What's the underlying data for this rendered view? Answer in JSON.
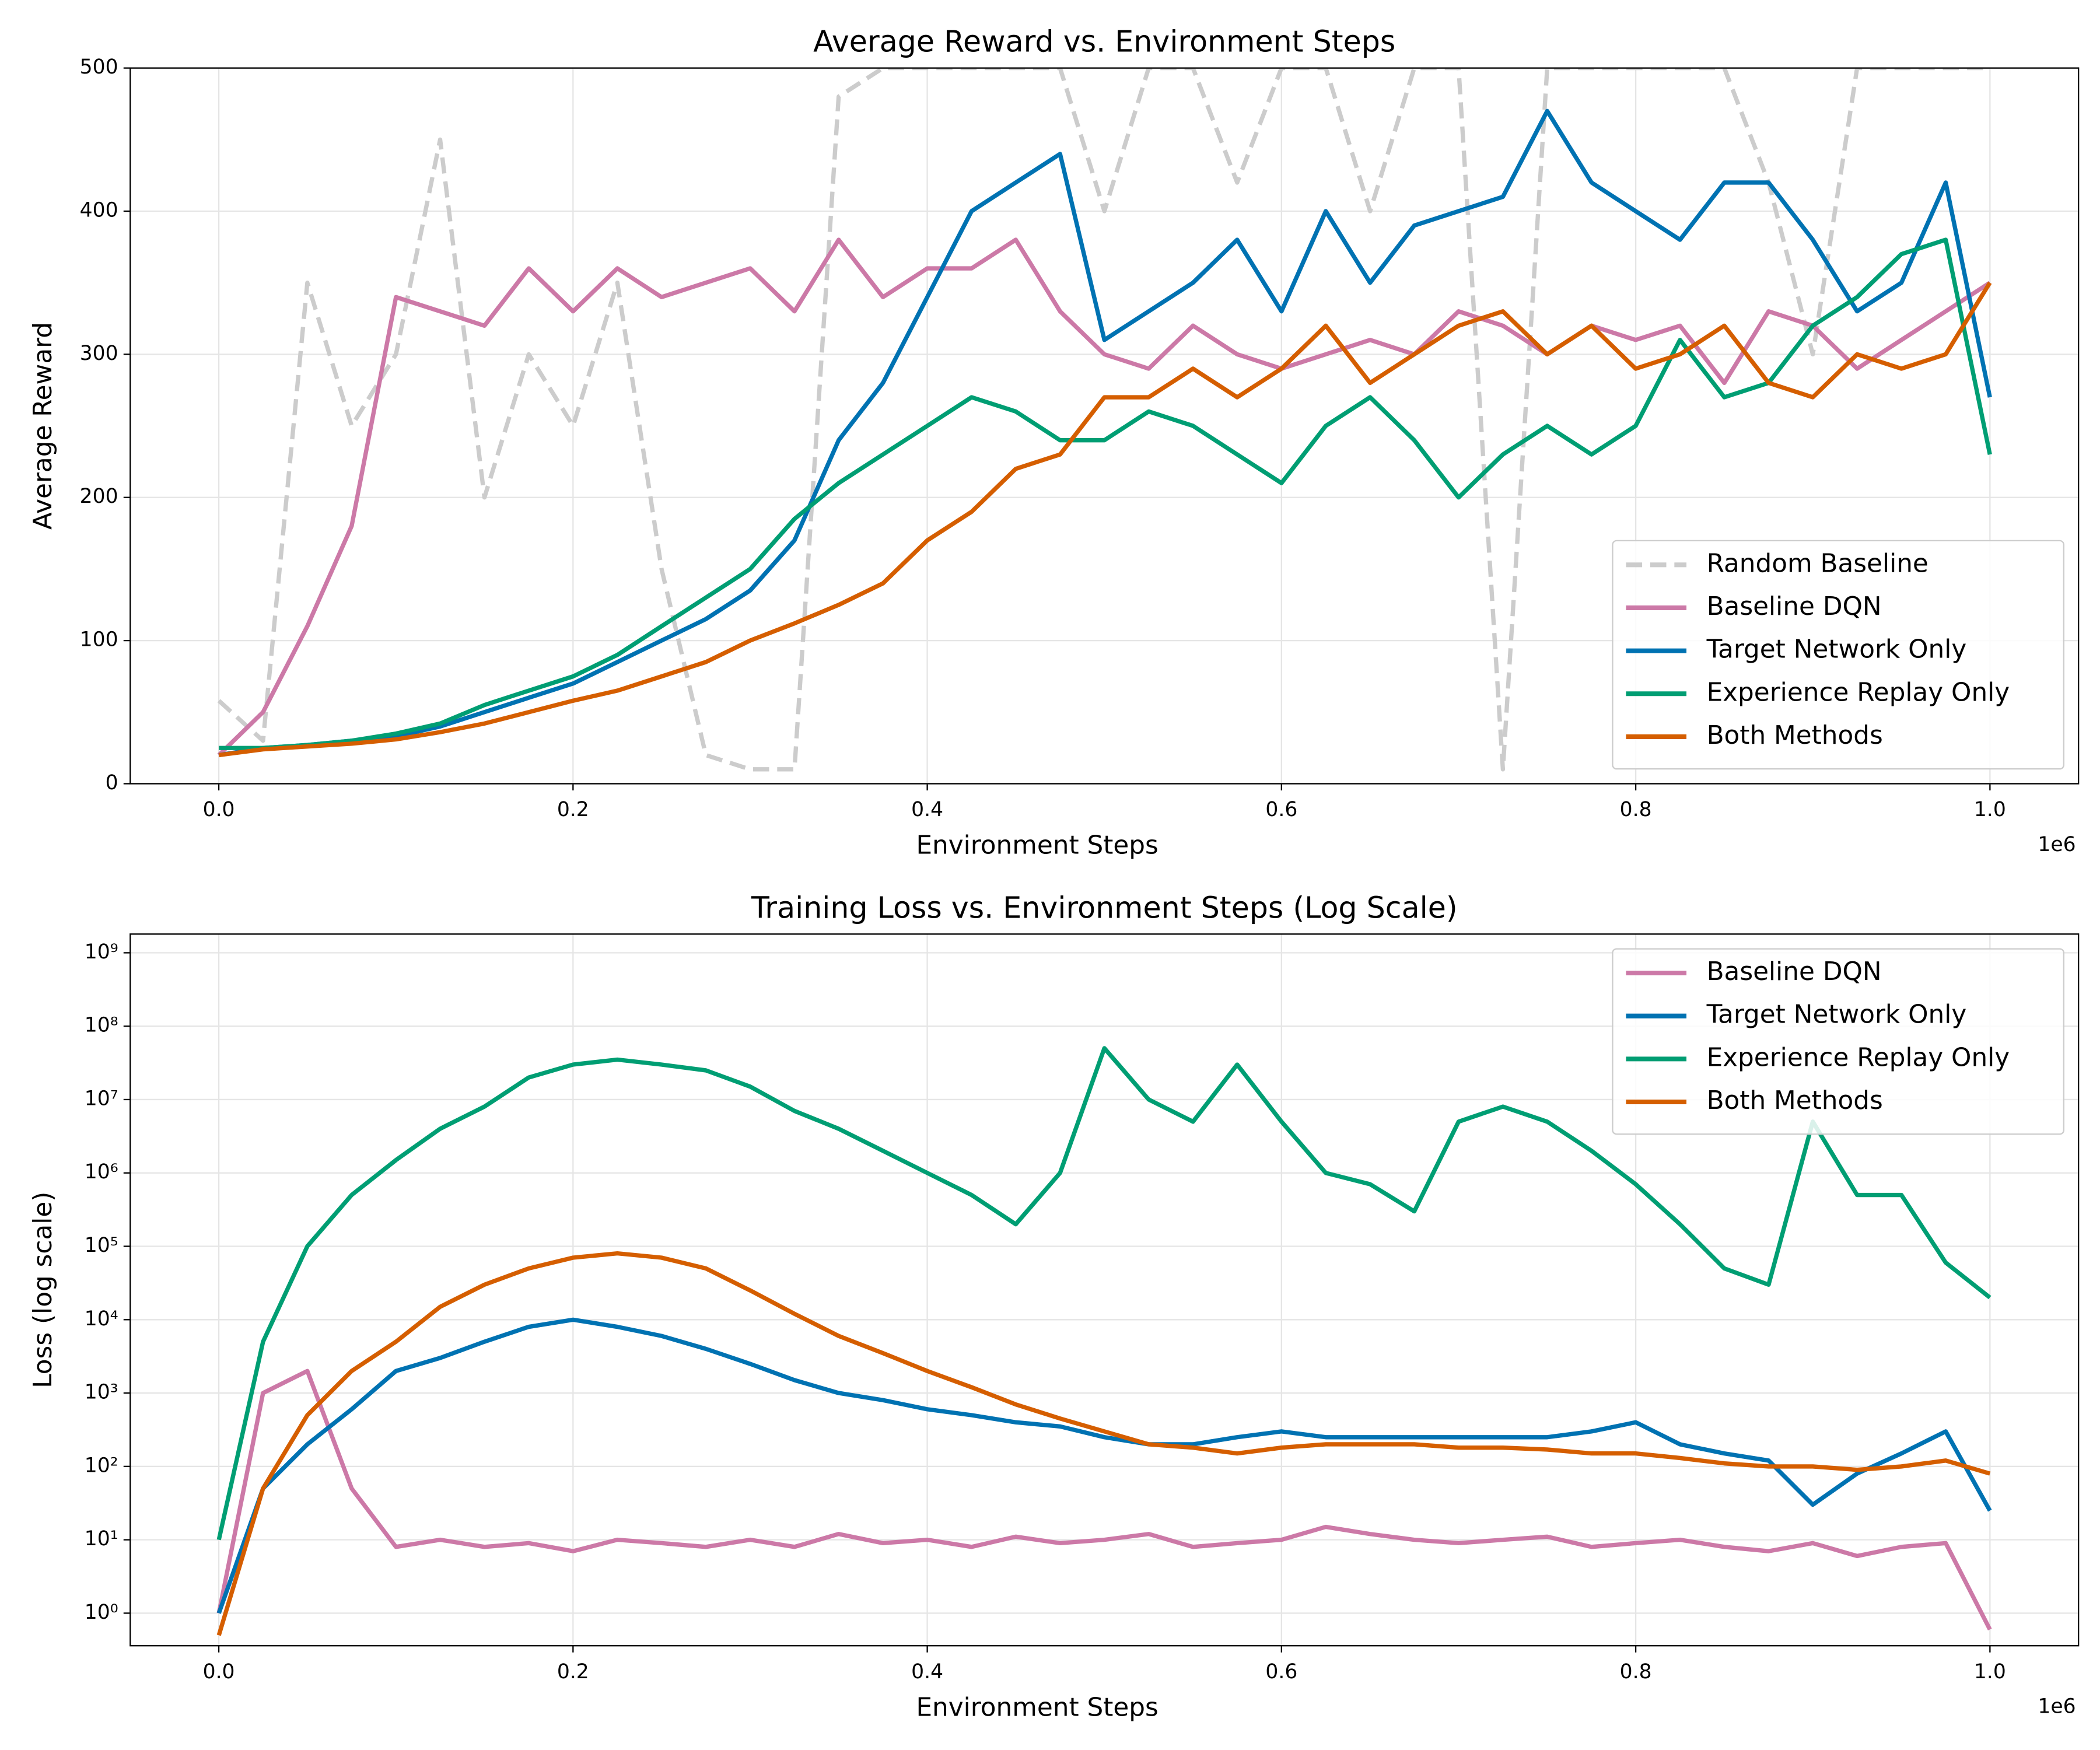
{
  "chart_data": [
    {
      "type": "line",
      "title": "Average Reward vs. Environment Steps",
      "x_label": "Environment Steps",
      "y_label": "Average Reward",
      "x_offset_label": "1e6",
      "x": [
        0,
        25000,
        50000,
        75000,
        100000,
        125000,
        150000,
        175000,
        200000,
        225000,
        250000,
        275000,
        300000,
        325000,
        350000,
        375000,
        400000,
        425000,
        450000,
        475000,
        500000,
        525000,
        550000,
        575000,
        600000,
        625000,
        650000,
        675000,
        700000,
        725000,
        750000,
        775000,
        800000,
        825000,
        850000,
        875000,
        900000,
        925000,
        950000,
        975000,
        1000000
      ],
      "xlim": [
        -50000,
        1050000
      ],
      "xticks": [
        {
          "value": 0,
          "label": "0.0"
        },
        {
          "value": 200000,
          "label": "0.2"
        },
        {
          "value": 400000,
          "label": "0.4"
        },
        {
          "value": 600000,
          "label": "0.6"
        },
        {
          "value": 800000,
          "label": "0.8"
        },
        {
          "value": 1000000,
          "label": "1.0"
        }
      ],
      "ylim": [
        0,
        500
      ],
      "yticks": [
        0,
        100,
        200,
        300,
        400,
        500
      ],
      "log_y": false,
      "grid": true,
      "legend": "lower right",
      "series": [
        {
          "name": "Random Baseline",
          "color": "#cccccc",
          "dash": true,
          "values": [
            58,
            30,
            350,
            250,
            300,
            450,
            200,
            300,
            250,
            350,
            150,
            20,
            10,
            10,
            480,
            500,
            500,
            500,
            500,
            500,
            400,
            500,
            500,
            420,
            500,
            500,
            400,
            500,
            500,
            10,
            500,
            500,
            500,
            500,
            500,
            420,
            300,
            500,
            500,
            500,
            500
          ]
        },
        {
          "name": "Baseline DQN",
          "color": "#cc79a7",
          "dash": false,
          "values": [
            20,
            50,
            110,
            180,
            340,
            330,
            320,
            360,
            330,
            360,
            340,
            350,
            360,
            330,
            380,
            340,
            360,
            360,
            380,
            330,
            300,
            290,
            320,
            300,
            290,
            300,
            310,
            300,
            330,
            320,
            300,
            320,
            310,
            320,
            280,
            330,
            320,
            290,
            310,
            330,
            350
          ]
        },
        {
          "name": "Target Network Only",
          "color": "#0072b2",
          "dash": false,
          "values": [
            20,
            25,
            27,
            30,
            33,
            40,
            50,
            60,
            70,
            85,
            100,
            115,
            135,
            170,
            240,
            280,
            340,
            400,
            420,
            440,
            310,
            330,
            350,
            380,
            330,
            400,
            350,
            390,
            400,
            410,
            470,
            420,
            400,
            380,
            420,
            420,
            380,
            330,
            350,
            420,
            270
          ]
        },
        {
          "name": "Experience Replay Only",
          "color": "#009e73",
          "dash": false,
          "values": [
            25,
            25,
            27,
            30,
            35,
            42,
            55,
            65,
            75,
            90,
            110,
            130,
            150,
            185,
            210,
            230,
            250,
            270,
            260,
            240,
            240,
            260,
            250,
            230,
            210,
            250,
            270,
            240,
            200,
            230,
            250,
            230,
            250,
            310,
            270,
            280,
            320,
            340,
            370,
            380,
            230
          ]
        },
        {
          "name": "Both Methods",
          "color": "#d55e00",
          "dash": false,
          "values": [
            20,
            24,
            26,
            28,
            31,
            36,
            42,
            50,
            58,
            65,
            75,
            85,
            100,
            112,
            125,
            140,
            170,
            190,
            220,
            230,
            270,
            270,
            290,
            270,
            290,
            320,
            280,
            300,
            320,
            330,
            300,
            320,
            290,
            300,
            320,
            280,
            270,
            300,
            290,
            300,
            350
          ]
        }
      ]
    },
    {
      "type": "line",
      "title": "Training Loss vs. Environment Steps (Log Scale)",
      "x_label": "Environment Steps",
      "y_label": "Loss (log scale)",
      "x_offset_label": "1e6",
      "x": [
        0,
        25000,
        50000,
        75000,
        100000,
        125000,
        150000,
        175000,
        200000,
        225000,
        250000,
        275000,
        300000,
        325000,
        350000,
        375000,
        400000,
        425000,
        450000,
        475000,
        500000,
        525000,
        550000,
        575000,
        600000,
        625000,
        650000,
        675000,
        700000,
        725000,
        750000,
        775000,
        800000,
        825000,
        850000,
        875000,
        900000,
        925000,
        950000,
        975000,
        1000000
      ],
      "xlim": [
        -50000,
        1050000
      ],
      "xticks": [
        {
          "value": 0,
          "label": "0.0"
        },
        {
          "value": 200000,
          "label": "0.2"
        },
        {
          "value": 400000,
          "label": "0.4"
        },
        {
          "value": 600000,
          "label": "0.6"
        },
        {
          "value": 800000,
          "label": "0.8"
        },
        {
          "value": 1000000,
          "label": "1.0"
        }
      ],
      "ylim": [
        0.36,
        1800000000
      ],
      "log_y": true,
      "grid": true,
      "legend": "upper right",
      "yticks": [
        {
          "value": 1,
          "label": "10⁰"
        },
        {
          "value": 10,
          "label": "10¹"
        },
        {
          "value": 100,
          "label": "10²"
        },
        {
          "value": 1000,
          "label": "10³"
        },
        {
          "value": 10000,
          "label": "10⁴"
        },
        {
          "value": 100000,
          "label": "10⁵"
        },
        {
          "value": 1000000,
          "label": "10⁶"
        },
        {
          "value": 10000000,
          "label": "10⁷"
        },
        {
          "value": 100000000,
          "label": "10⁸"
        },
        {
          "value": 1000000000,
          "label": "10⁹"
        }
      ],
      "series": [
        {
          "name": "Baseline DQN",
          "color": "#cc79a7",
          "dash": false,
          "values": [
            1,
            1000,
            2000,
            50,
            8,
            10,
            8,
            9,
            7,
            10,
            9,
            8,
            10,
            8,
            12,
            9,
            10,
            8,
            11,
            9,
            10,
            12,
            8,
            9,
            10,
            15,
            12,
            10,
            9,
            10,
            11,
            8,
            9,
            10,
            8,
            7,
            9,
            6,
            8,
            9,
            0.6
          ]
        },
        {
          "name": "Target Network Only",
          "color": "#0072b2",
          "dash": false,
          "values": [
            1,
            50,
            200,
            600,
            2000,
            3000,
            5000,
            8000,
            10000,
            8000,
            6000,
            4000,
            2500,
            1500,
            1000,
            800,
            600,
            500,
            400,
            350,
            250,
            200,
            200,
            250,
            300,
            250,
            250,
            250,
            250,
            250,
            250,
            300,
            400,
            200,
            150,
            120,
            30,
            80,
            150,
            300,
            25
          ]
        },
        {
          "name": "Experience Replay Only",
          "color": "#009e73",
          "dash": false,
          "values": [
            10,
            5000,
            100000,
            500000,
            1500000,
            4000000,
            8000000,
            20000000,
            30000000,
            35000000,
            30000000,
            25000000,
            15000000,
            7000000,
            4000000,
            2000000,
            1000000,
            500000,
            200000,
            1000000,
            50000000,
            10000000,
            5000000,
            30000000,
            5000000,
            1000000,
            700000,
            300000,
            5000000,
            8000000,
            5000000,
            2000000,
            700000,
            200000,
            50000,
            30000,
            5000000,
            500000,
            500000,
            60000,
            20000
          ]
        },
        {
          "name": "Both Methods",
          "color": "#d55e00",
          "dash": false,
          "values": [
            0.5,
            50,
            500,
            2000,
            5000,
            15000,
            30000,
            50000,
            70000,
            80000,
            70000,
            50000,
            25000,
            12000,
            6000,
            3500,
            2000,
            1200,
            700,
            450,
            300,
            200,
            180,
            150,
            180,
            200,
            200,
            200,
            180,
            180,
            170,
            150,
            150,
            130,
            110,
            100,
            100,
            90,
            100,
            120,
            80
          ]
        }
      ]
    }
  ]
}
